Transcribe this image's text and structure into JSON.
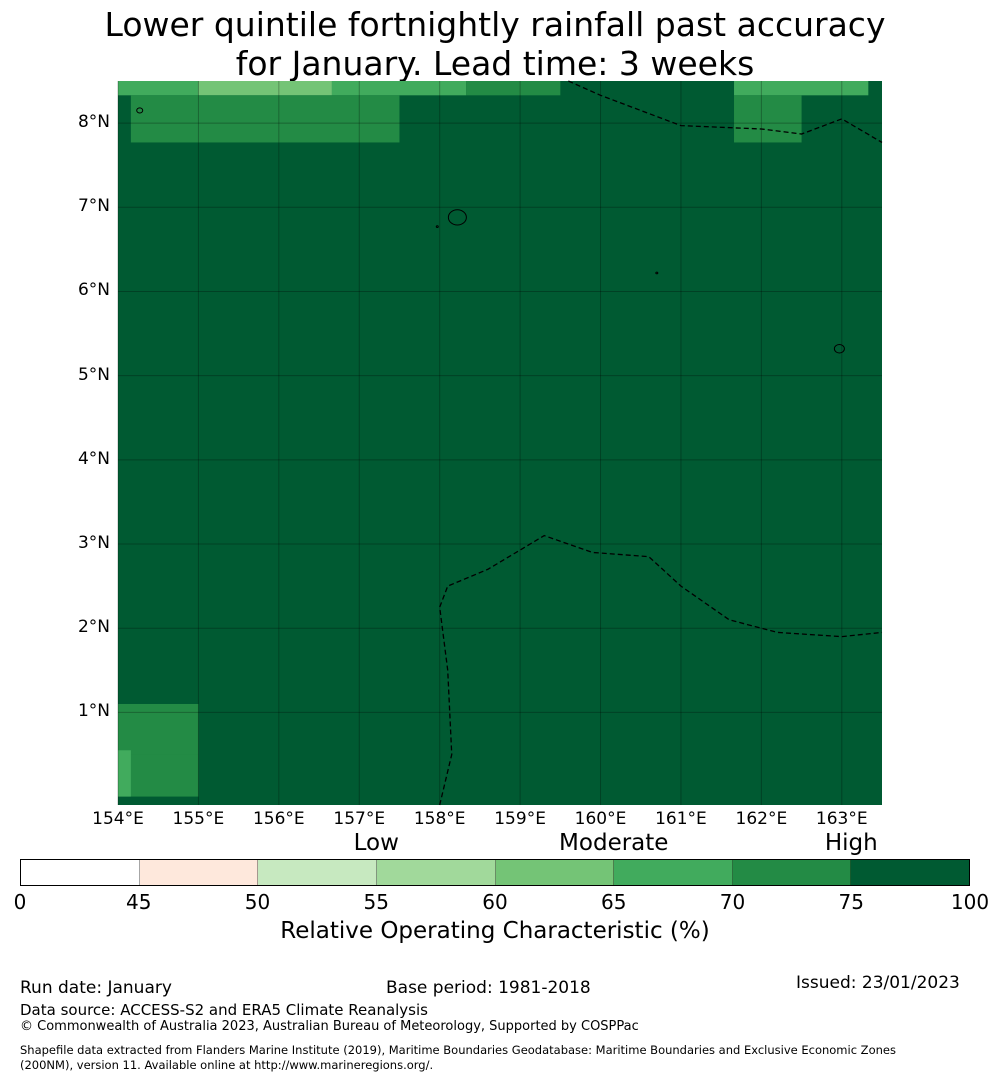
{
  "title": {
    "line1": "Lower quintile fortnightly rainfall past accuracy",
    "line2": "for January. Lead time: 3 weeks"
  },
  "map": {
    "lon_min": 154.0,
    "lon_max": 163.5,
    "lat_min": -0.1,
    "lat_max": 8.5,
    "background_color": "#005a32",
    "lat_labels": [
      {
        "lat": 8,
        "text": "8°N"
      },
      {
        "lat": 7,
        "text": "7°N"
      },
      {
        "lat": 6,
        "text": "6°N"
      },
      {
        "lat": 5,
        "text": "5°N"
      },
      {
        "lat": 4,
        "text": "4°N"
      },
      {
        "lat": 3,
        "text": "3°N"
      },
      {
        "lat": 2,
        "text": "2°N"
      },
      {
        "lat": 1,
        "text": "1°N"
      }
    ],
    "lon_labels": [
      {
        "lon": 154,
        "text": "154°E"
      },
      {
        "lon": 155,
        "text": "155°E"
      },
      {
        "lon": 156,
        "text": "156°E"
      },
      {
        "lon": 157,
        "text": "157°E"
      },
      {
        "lon": 158,
        "text": "158°E"
      },
      {
        "lon": 159,
        "text": "159°E"
      },
      {
        "lon": 160,
        "text": "160°E"
      },
      {
        "lon": 161,
        "text": "161°E"
      },
      {
        "lon": 162,
        "text": "162°E"
      },
      {
        "lon": 163,
        "text": "163°E"
      }
    ],
    "cells": [
      {
        "lon0": 154.0,
        "lon1": 155.0,
        "lat0": 8.33,
        "lat1": 8.5,
        "color": "#41ab5d"
      },
      {
        "lon0": 155.0,
        "lon1": 156.66,
        "lat0": 8.33,
        "lat1": 8.5,
        "color": "#74c476"
      },
      {
        "lon0": 156.66,
        "lon1": 158.33,
        "lat0": 8.33,
        "lat1": 8.5,
        "color": "#41ab5d"
      },
      {
        "lon0": 158.33,
        "lon1": 159.5,
        "lat0": 8.33,
        "lat1": 8.5,
        "color": "#238b45"
      },
      {
        "lon0": 161.66,
        "lon1": 163.33,
        "lat0": 8.33,
        "lat1": 8.5,
        "color": "#41ab5d"
      },
      {
        "lon0": 154.16,
        "lon1": 157.5,
        "lat0": 7.77,
        "lat1": 8.33,
        "color": "#238b45"
      },
      {
        "lon0": 161.66,
        "lon1": 162.5,
        "lat0": 7.77,
        "lat1": 8.33,
        "color": "#238b45"
      },
      {
        "lon0": 154.0,
        "lon1": 155.0,
        "lat0": 0.5,
        "lat1": 1.1,
        "color": "#238b45"
      },
      {
        "lon0": 154.0,
        "lon1": 155.0,
        "lat0": 0.0,
        "lat1": 0.5,
        "color": "#238b45"
      },
      {
        "lon0": 154.0,
        "lon1": 154.16,
        "lat0": 0.0,
        "lat1": 0.55,
        "color": "#41ab5d"
      }
    ],
    "boundaries": [
      [
        [
          159.6,
          8.5
        ],
        [
          160.0,
          8.33
        ],
        [
          161.0,
          7.97
        ],
        [
          162.0,
          7.93
        ],
        [
          162.5,
          7.87
        ],
        [
          163.0,
          8.05
        ],
        [
          163.5,
          7.77
        ]
      ],
      [
        [
          158.0,
          -0.1
        ],
        [
          158.15,
          0.5
        ],
        [
          158.1,
          1.5
        ],
        [
          158.0,
          2.25
        ],
        [
          158.1,
          2.5
        ],
        [
          158.6,
          2.7
        ],
        [
          159.3,
          3.1
        ],
        [
          159.9,
          2.9
        ],
        [
          160.6,
          2.85
        ],
        [
          161.0,
          2.5
        ],
        [
          161.6,
          2.1
        ],
        [
          162.2,
          1.95
        ],
        [
          163.0,
          1.9
        ],
        [
          163.5,
          1.95
        ]
      ]
    ],
    "islands": [
      {
        "lon": 158.22,
        "lat": 6.88,
        "size": 9
      },
      {
        "lon": 162.97,
        "lat": 5.32,
        "size": 5
      },
      {
        "lon": 154.27,
        "lat": 8.15,
        "size": 3
      },
      {
        "lon": 157.97,
        "lat": 6.77,
        "size": 1
      },
      {
        "lon": 160.7,
        "lat": 6.22,
        "size": 1
      }
    ]
  },
  "colorbar": {
    "category_labels": [
      {
        "text": "Low",
        "value": 55
      },
      {
        "text": "Moderate",
        "value": 65
      },
      {
        "text": "High",
        "value": 75
      }
    ],
    "segments": [
      {
        "from": 0,
        "to": 45,
        "color": "#ffffff"
      },
      {
        "from": 45,
        "to": 50,
        "color": "#fee8dc"
      },
      {
        "from": 50,
        "to": 55,
        "color": "#c7e9c0"
      },
      {
        "from": 55,
        "to": 60,
        "color": "#a1d99b"
      },
      {
        "from": 60,
        "to": 65,
        "color": "#74c476"
      },
      {
        "from": 65,
        "to": 70,
        "color": "#41ab5d"
      },
      {
        "from": 70,
        "to": 75,
        "color": "#238b45"
      },
      {
        "from": 75,
        "to": 100,
        "color": "#005a32"
      }
    ],
    "ticks": [
      "0",
      "45",
      "50",
      "55",
      "60",
      "65",
      "70",
      "75",
      "100"
    ],
    "label": "Relative Operating Characteristic (%)"
  },
  "footer": {
    "run_date": "Run date: January",
    "base_period": "Base period: 1981-2018",
    "issued": "Issued: 23/01/2023",
    "data_source": "Data source: ACCESS-S2 and ERA5 Climate Reanalysis",
    "copyright": "© Commonwealth of Australia 2023, Australian Bureau of Meteorology, Supported by COSPPac",
    "shapefile_line1": "Shapefile data extracted from Flanders Marine Institute (2019), Maritime Boundaries Geodatabase: Maritime Boundaries and Exclusive Economic Zones",
    "shapefile_line2": "(200NM), version 11. Available online at http://www.marineregions.org/."
  }
}
